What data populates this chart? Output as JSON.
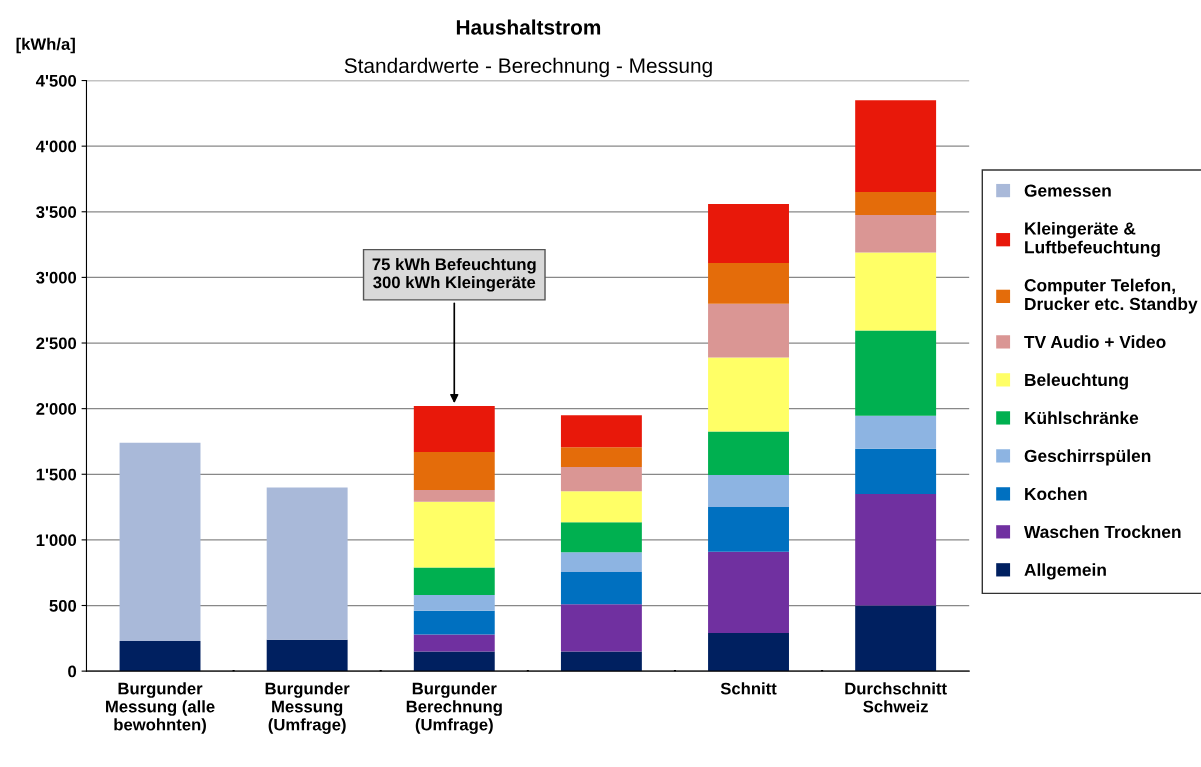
{
  "chart_data": {
    "type": "bar",
    "stacked": true,
    "title": "Haushaltstrom",
    "subtitle": "Standardwerte - Berechnung - Messung",
    "ylabel": "[kWh/a]",
    "categories": [
      "Burgunder\nMessung (alle\nbewohnten)",
      "Burgunder\nMessung\n(Umfrage)",
      "Burgunder\nBerechnung\n(Umfrage)",
      null,
      "Schnitt",
      "Durchschnitt\nSchweiz"
    ],
    "series": [
      {
        "name": "Allgemein",
        "color": "#002060",
        "values": [
          230,
          240,
          150,
          150,
          290,
          500
        ]
      },
      {
        "name": "Waschen Trocknen",
        "color": "#7030a0",
        "values": [
          null,
          null,
          130,
          360,
          620,
          850
        ]
      },
      {
        "name": "Kochen",
        "color": "#0070c0",
        "values": [
          null,
          null,
          180,
          245,
          340,
          345
        ]
      },
      {
        "name": "Geschirrspülen",
        "color": "#8db4e2",
        "values": [
          null,
          null,
          120,
          150,
          245,
          250
        ]
      },
      {
        "name": "Kühlschränke",
        "color": "#00b050",
        "values": [
          null,
          null,
          210,
          230,
          330,
          650
        ]
      },
      {
        "name": "Beleuchtung",
        "color": "#ffff66",
        "values": [
          null,
          null,
          500,
          235,
          565,
          595
        ]
      },
      {
        "name": "TV Audio + Video",
        "color": "#da9694",
        "values": [
          null,
          null,
          90,
          185,
          410,
          285
        ]
      },
      {
        "name": "Computer Telefon,\nDrucker etc. Standby",
        "color": "#e46c0a",
        "values": [
          null,
          null,
          290,
          150,
          310,
          175
        ]
      },
      {
        "name": "Kleingeräte &\nLuftbefeuchtung",
        "color": "#e8180a",
        "values": [
          null,
          null,
          350,
          245,
          450,
          700
        ]
      },
      {
        "name": "Gemessen",
        "color": "#a9b9d9",
        "values": [
          1510,
          1160,
          null,
          null,
          null,
          null
        ]
      }
    ],
    "ylim": [
      0,
      4500
    ],
    "yticks": [
      0,
      500,
      {
        "value": 1000,
        "label": "1'000"
      },
      {
        "value": 1500,
        "label": "1'500"
      },
      {
        "value": 2000,
        "label": "2'000"
      },
      {
        "value": 2500,
        "label": "2'500"
      },
      {
        "value": 3000,
        "label": "3'000"
      },
      {
        "value": 3500,
        "label": "3'500"
      },
      {
        "value": 4000,
        "label": "4'000"
      },
      {
        "value": 4500,
        "label": "4'500"
      }
    ],
    "grid": "y",
    "legend": "right",
    "annotations": [
      {
        "text": "75 kWh Befeuchtung\n300 kWh Kleingeräte",
        "x": "Burgunder\nBerechnung\n(Umfrage)",
        "y": 2020
      }
    ]
  }
}
